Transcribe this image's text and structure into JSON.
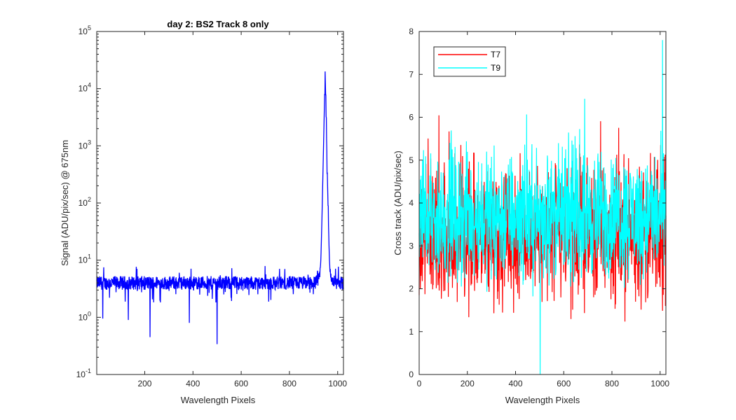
{
  "chart_data": [
    {
      "type": "line",
      "title": "day 2: BS2   Track 8 only",
      "xlabel": "Wavelength Pixels",
      "ylabel": "Signal (ADU/pix/sec) @ 675nm",
      "xlim": [
        1,
        1024
      ],
      "ylim": [
        0.1,
        100000
      ],
      "yscale": "log",
      "grid": false,
      "xticks": [
        200,
        400,
        600,
        800,
        1000
      ],
      "yticks": [
        {
          "base": "10",
          "exp": "-1",
          "value": 0.1
        },
        {
          "base": "10",
          "exp": "0",
          "value": 1
        },
        {
          "base": "10",
          "exp": "1",
          "value": 10
        },
        {
          "base": "10",
          "exp": "2",
          "value": 100
        },
        {
          "base": "10",
          "exp": "3",
          "value": 1000
        },
        {
          "base": "10",
          "exp": "4",
          "value": 10000
        },
        {
          "base": "10",
          "exp": "5",
          "value": 100000
        }
      ],
      "series": [
        {
          "color": "#0000ff",
          "description_values": {
            "baseline": 4,
            "peak_x": 948,
            "peak_y": 20000,
            "dips": [
              [
                26,
                0.95
              ],
              [
                132,
                0.9
              ],
              [
                222,
                0.45
              ],
              [
                385,
                0.8
              ],
              [
                500,
                0.34
              ]
            ],
            "end_x": 1024
          }
        }
      ]
    },
    {
      "type": "line",
      "title": "",
      "xlabel": "Wavelength Pixels",
      "ylabel": "Cross track (ADU/pix/sec)",
      "xlim": [
        0,
        1024
      ],
      "ylim": [
        0,
        8
      ],
      "grid": false,
      "xticks": [
        0,
        200,
        400,
        600,
        800,
        1000
      ],
      "yticks": [
        0,
        1,
        2,
        3,
        4,
        5,
        6,
        7,
        8
      ],
      "legend_position": "top-left",
      "series": [
        {
          "name": "T7",
          "color": "#ff0000",
          "mean": 3.3,
          "spread": 1.1
        },
        {
          "name": "T9",
          "color": "#00ffff",
          "mean": 3.7,
          "spread": 1.0,
          "peak_x": 1010,
          "peak_y": 7.8,
          "min_x": 502,
          "min_y": 0
        }
      ]
    }
  ]
}
